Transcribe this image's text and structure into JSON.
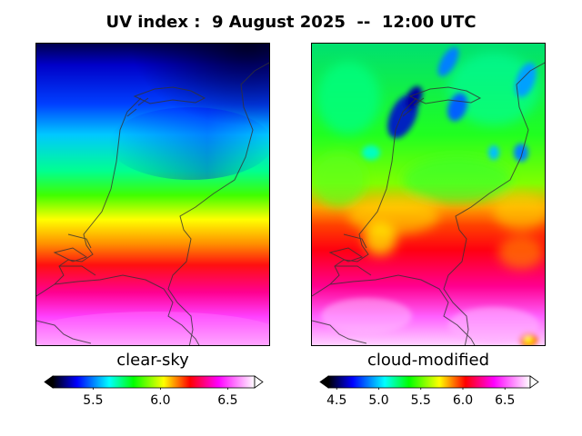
{
  "chart_data": [
    {
      "type": "heatmap",
      "title": "UV index :  9 August 2025  --  12:00 UTC",
      "panel_label": "clear-sky",
      "colorbar": {
        "vmin": 5.2,
        "vmax": 6.7,
        "ticks": [
          5.5,
          6.0,
          6.5
        ],
        "tick_labels": [
          "5.5",
          "6.0",
          "6.5"
        ],
        "extend": "both"
      },
      "field_description": "UV index rises from north (~5.2) to south (~6.7)",
      "approx_values_north_to_south": [
        5.2,
        5.3,
        5.5,
        5.7,
        5.9,
        6.1,
        6.3,
        6.5,
        6.6
      ]
    },
    {
      "type": "heatmap",
      "title": "UV index :  9 August 2025  --  12:00 UTC",
      "panel_label": "cloud-modified",
      "colorbar": {
        "vmin": 4.4,
        "vmax": 6.8,
        "ticks": [
          4.5,
          5.0,
          5.5,
          6.0,
          6.5
        ],
        "tick_labels": [
          "4.5",
          "5.0",
          "5.5",
          "6.0",
          "6.5"
        ],
        "extend": "both"
      },
      "field_description": "Patchy: ~5.5 in the north with cloudy minima (~4.5), increasing to ~6.8 in the south",
      "approx_values_north_to_south": [
        5.6,
        5.4,
        5.6,
        5.8,
        6.0,
        6.2,
        6.4,
        6.6,
        6.7
      ]
    }
  ],
  "header": {
    "title": "UV index :  9 August 2025  --  12:00 UTC"
  }
}
